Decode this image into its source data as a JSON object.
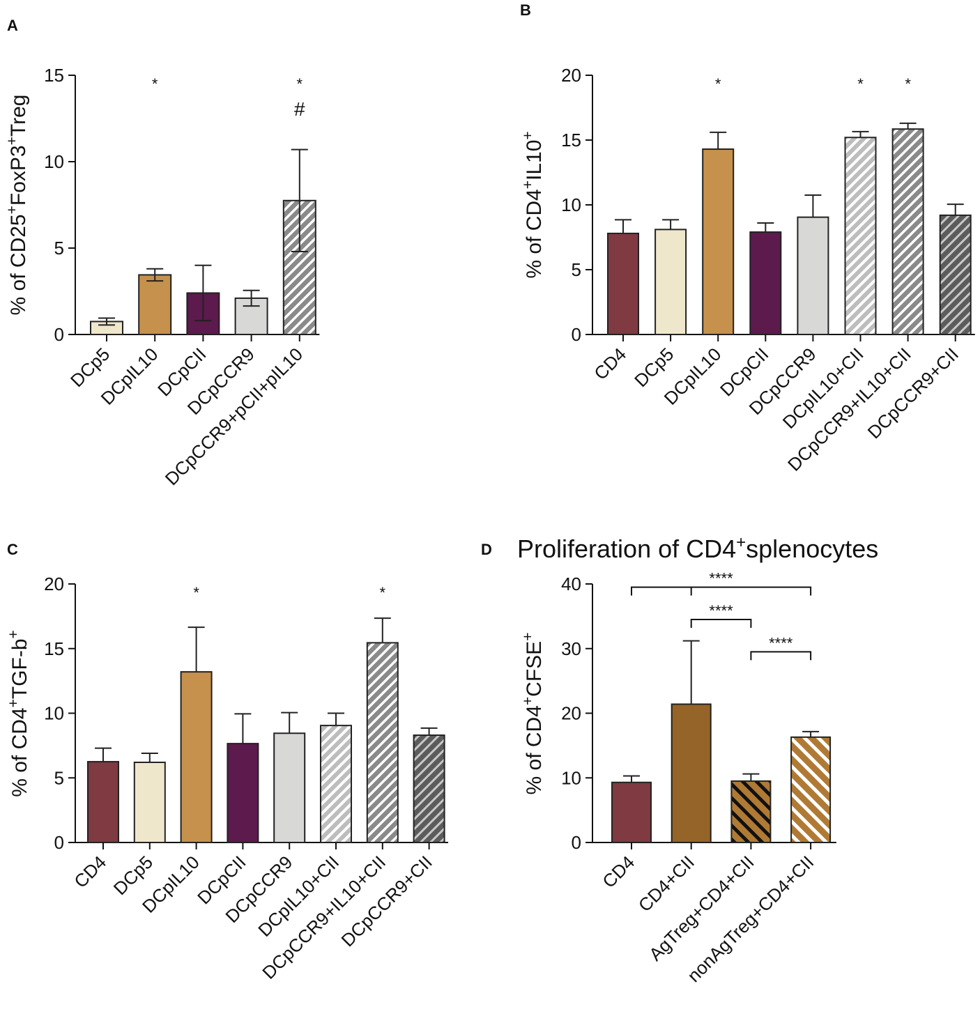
{
  "chart_data": [
    {
      "panel": "A",
      "type": "bar",
      "title": "",
      "ylabel": "% of CD25⁺FoxP3⁺Treg",
      "ylabel_parts": [
        "% of CD25",
        "+",
        "FoxP3",
        "+",
        "Treg"
      ],
      "ylim": [
        0,
        15
      ],
      "yticks": [
        0,
        5,
        10,
        15
      ],
      "categories": [
        "DCp5",
        "DCpIL10",
        "DCpCII",
        "DCpCCR9",
        "DCpCCR9+pCII+pIL10"
      ],
      "values": [
        0.75,
        3.45,
        2.4,
        2.1,
        7.75
      ],
      "errors": [
        0.2,
        0.35,
        1.6,
        0.45,
        2.95
      ],
      "error_style": [
        "both",
        "both",
        "both",
        "both",
        "both"
      ],
      "fills": [
        "#efe7cc",
        "#c6914d",
        "#5c1a4d",
        "#d8d9d7",
        "hatch-mid"
      ],
      "sig_labels": [
        {
          "index": 1,
          "text": "*"
        },
        {
          "index": 4,
          "text": "*"
        },
        {
          "index": 4,
          "text": "#"
        }
      ]
    },
    {
      "panel": "B",
      "type": "bar",
      "title": "",
      "ylabel": "% of CD4⁺IL10⁺",
      "ylabel_parts": [
        "% of CD4",
        "+",
        "IL10",
        "+"
      ],
      "ylim": [
        0,
        20
      ],
      "yticks": [
        0,
        5,
        10,
        15,
        20
      ],
      "categories": [
        "CD4",
        "DCp5",
        "DCpIL10",
        "DCpCII",
        "DCpCCR9",
        "DCpIL10+CII",
        "DCpCCR9+IL10+CII",
        "DCpCCR9+CII"
      ],
      "values": [
        7.8,
        8.1,
        14.3,
        7.9,
        9.05,
        15.2,
        15.85,
        9.2
      ],
      "errors": [
        1.05,
        0.75,
        1.3,
        0.7,
        1.7,
        0.45,
        0.45,
        0.85
      ],
      "error_style": [
        "up",
        "up",
        "up",
        "up",
        "up",
        "up",
        "up",
        "up"
      ],
      "fills": [
        "#7f3a42",
        "#efe7cc",
        "#c6914d",
        "#5c1a4d",
        "#d8d9d7",
        "hatch-light",
        "hatch-mid",
        "hatch-dark"
      ],
      "sig_labels": [
        {
          "index": 2,
          "text": "*"
        },
        {
          "index": 5,
          "text": "*"
        },
        {
          "index": 6,
          "text": "*"
        }
      ]
    },
    {
      "panel": "C",
      "type": "bar",
      "title": "",
      "ylabel": "% of CD4⁺TGF-b⁺",
      "ylabel_parts": [
        "% of CD4",
        "+",
        "TGF-b",
        "+"
      ],
      "ylim": [
        0,
        20
      ],
      "yticks": [
        0,
        5,
        10,
        15,
        20
      ],
      "categories": [
        "CD4",
        "DCp5",
        "DCpIL10",
        "DCpCII",
        "DCpCCR9",
        "DCpIL10+CII",
        "DCpCCR9+IL10+CII",
        "DCpCCR9+CII"
      ],
      "values": [
        6.25,
        6.2,
        13.2,
        7.65,
        8.45,
        9.05,
        15.45,
        8.3
      ],
      "errors": [
        1.05,
        0.7,
        3.45,
        2.3,
        1.6,
        0.95,
        1.9,
        0.55
      ],
      "error_style": [
        "up",
        "up",
        "up",
        "up",
        "up",
        "up",
        "up",
        "up"
      ],
      "fills": [
        "#7f3a42",
        "#efe7cc",
        "#c6914d",
        "#5c1a4d",
        "#d8d9d7",
        "hatch-light",
        "hatch-mid",
        "hatch-dark"
      ],
      "sig_labels": [
        {
          "index": 2,
          "text": "*"
        },
        {
          "index": 6,
          "text": "*"
        }
      ]
    },
    {
      "panel": "D",
      "type": "bar",
      "title": "Proliferation of CD4⁺splenocytes",
      "title_parts": [
        "Proliferation of CD4",
        "+",
        "splenocytes"
      ],
      "ylabel": "% of CD4⁺CFSE⁺",
      "ylabel_parts": [
        "% of CD4",
        "+",
        "CFSE",
        "+"
      ],
      "ylim": [
        0,
        40
      ],
      "yticks": [
        0,
        10,
        20,
        30,
        40
      ],
      "categories": [
        "CD4",
        "CD4+CII",
        "AgTreg+CD4+CII",
        "nonAgTreg+CD4+CII"
      ],
      "values": [
        9.3,
        21.4,
        9.5,
        16.3
      ],
      "errors": [
        1.0,
        9.8,
        1.1,
        0.85
      ],
      "error_style": [
        "up",
        "up",
        "up",
        "up"
      ],
      "fills": [
        "#7f3a42",
        "#956428",
        "hatch-brown-dark",
        "hatch-brown-light"
      ],
      "sig_labels": [],
      "brackets": [
        {
          "from": 0,
          "to": 3,
          "mid": 1,
          "y": 39.5,
          "text": "****"
        },
        {
          "from": 1,
          "to": 2,
          "y": 34.5,
          "text": "****"
        },
        {
          "from": 2,
          "to": 3,
          "y": 29.5,
          "text": "****"
        }
      ]
    }
  ]
}
